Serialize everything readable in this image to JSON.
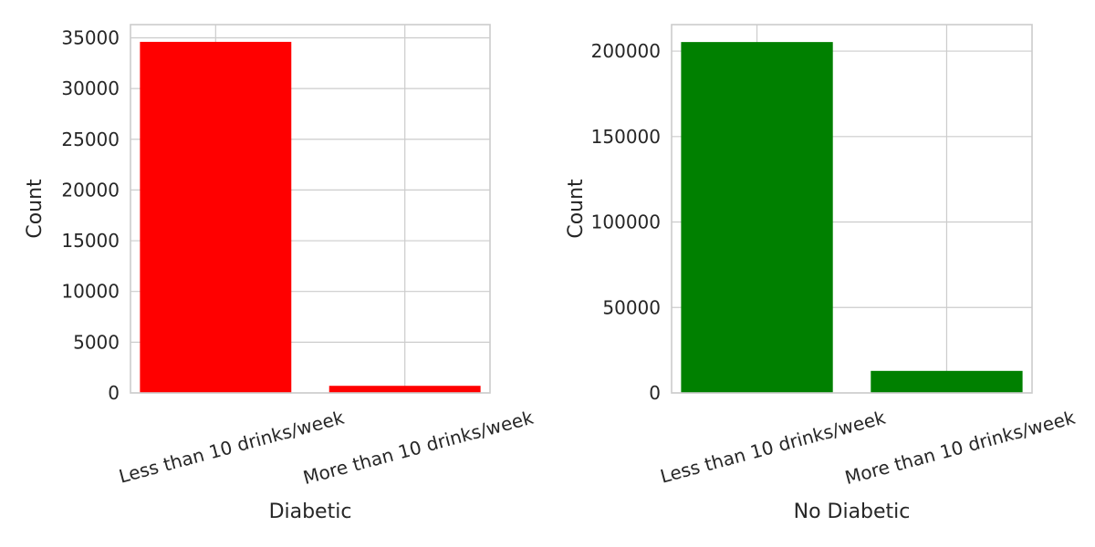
{
  "chart_data": [
    {
      "type": "bar",
      "categories": [
        "Less than 10 drinks/week",
        "More than 10 drinks/week"
      ],
      "values": [
        34600,
        700
      ],
      "color": "#ff0000",
      "title": "",
      "xlabel": "Diabetic",
      "ylabel": "Count",
      "ylim": [
        0,
        36300
      ],
      "yticks": [
        0,
        5000,
        10000,
        15000,
        20000,
        25000,
        30000,
        35000
      ],
      "ytick_labels": [
        "0",
        "5000",
        "10000",
        "15000",
        "20000",
        "25000",
        "30000",
        "35000"
      ],
      "grid": true
    },
    {
      "type": "bar",
      "categories": [
        "Less than 10 drinks/week",
        "More than 10 drinks/week"
      ],
      "values": [
        205300,
        12900
      ],
      "color": "#008000",
      "title": "",
      "xlabel": "No Diabetic",
      "ylabel": "Count",
      "ylim": [
        0,
        215500
      ],
      "yticks": [
        0,
        50000,
        100000,
        150000,
        200000
      ],
      "ytick_labels": [
        "0",
        "50000",
        "100000",
        "150000",
        "200000"
      ],
      "grid": true
    }
  ]
}
